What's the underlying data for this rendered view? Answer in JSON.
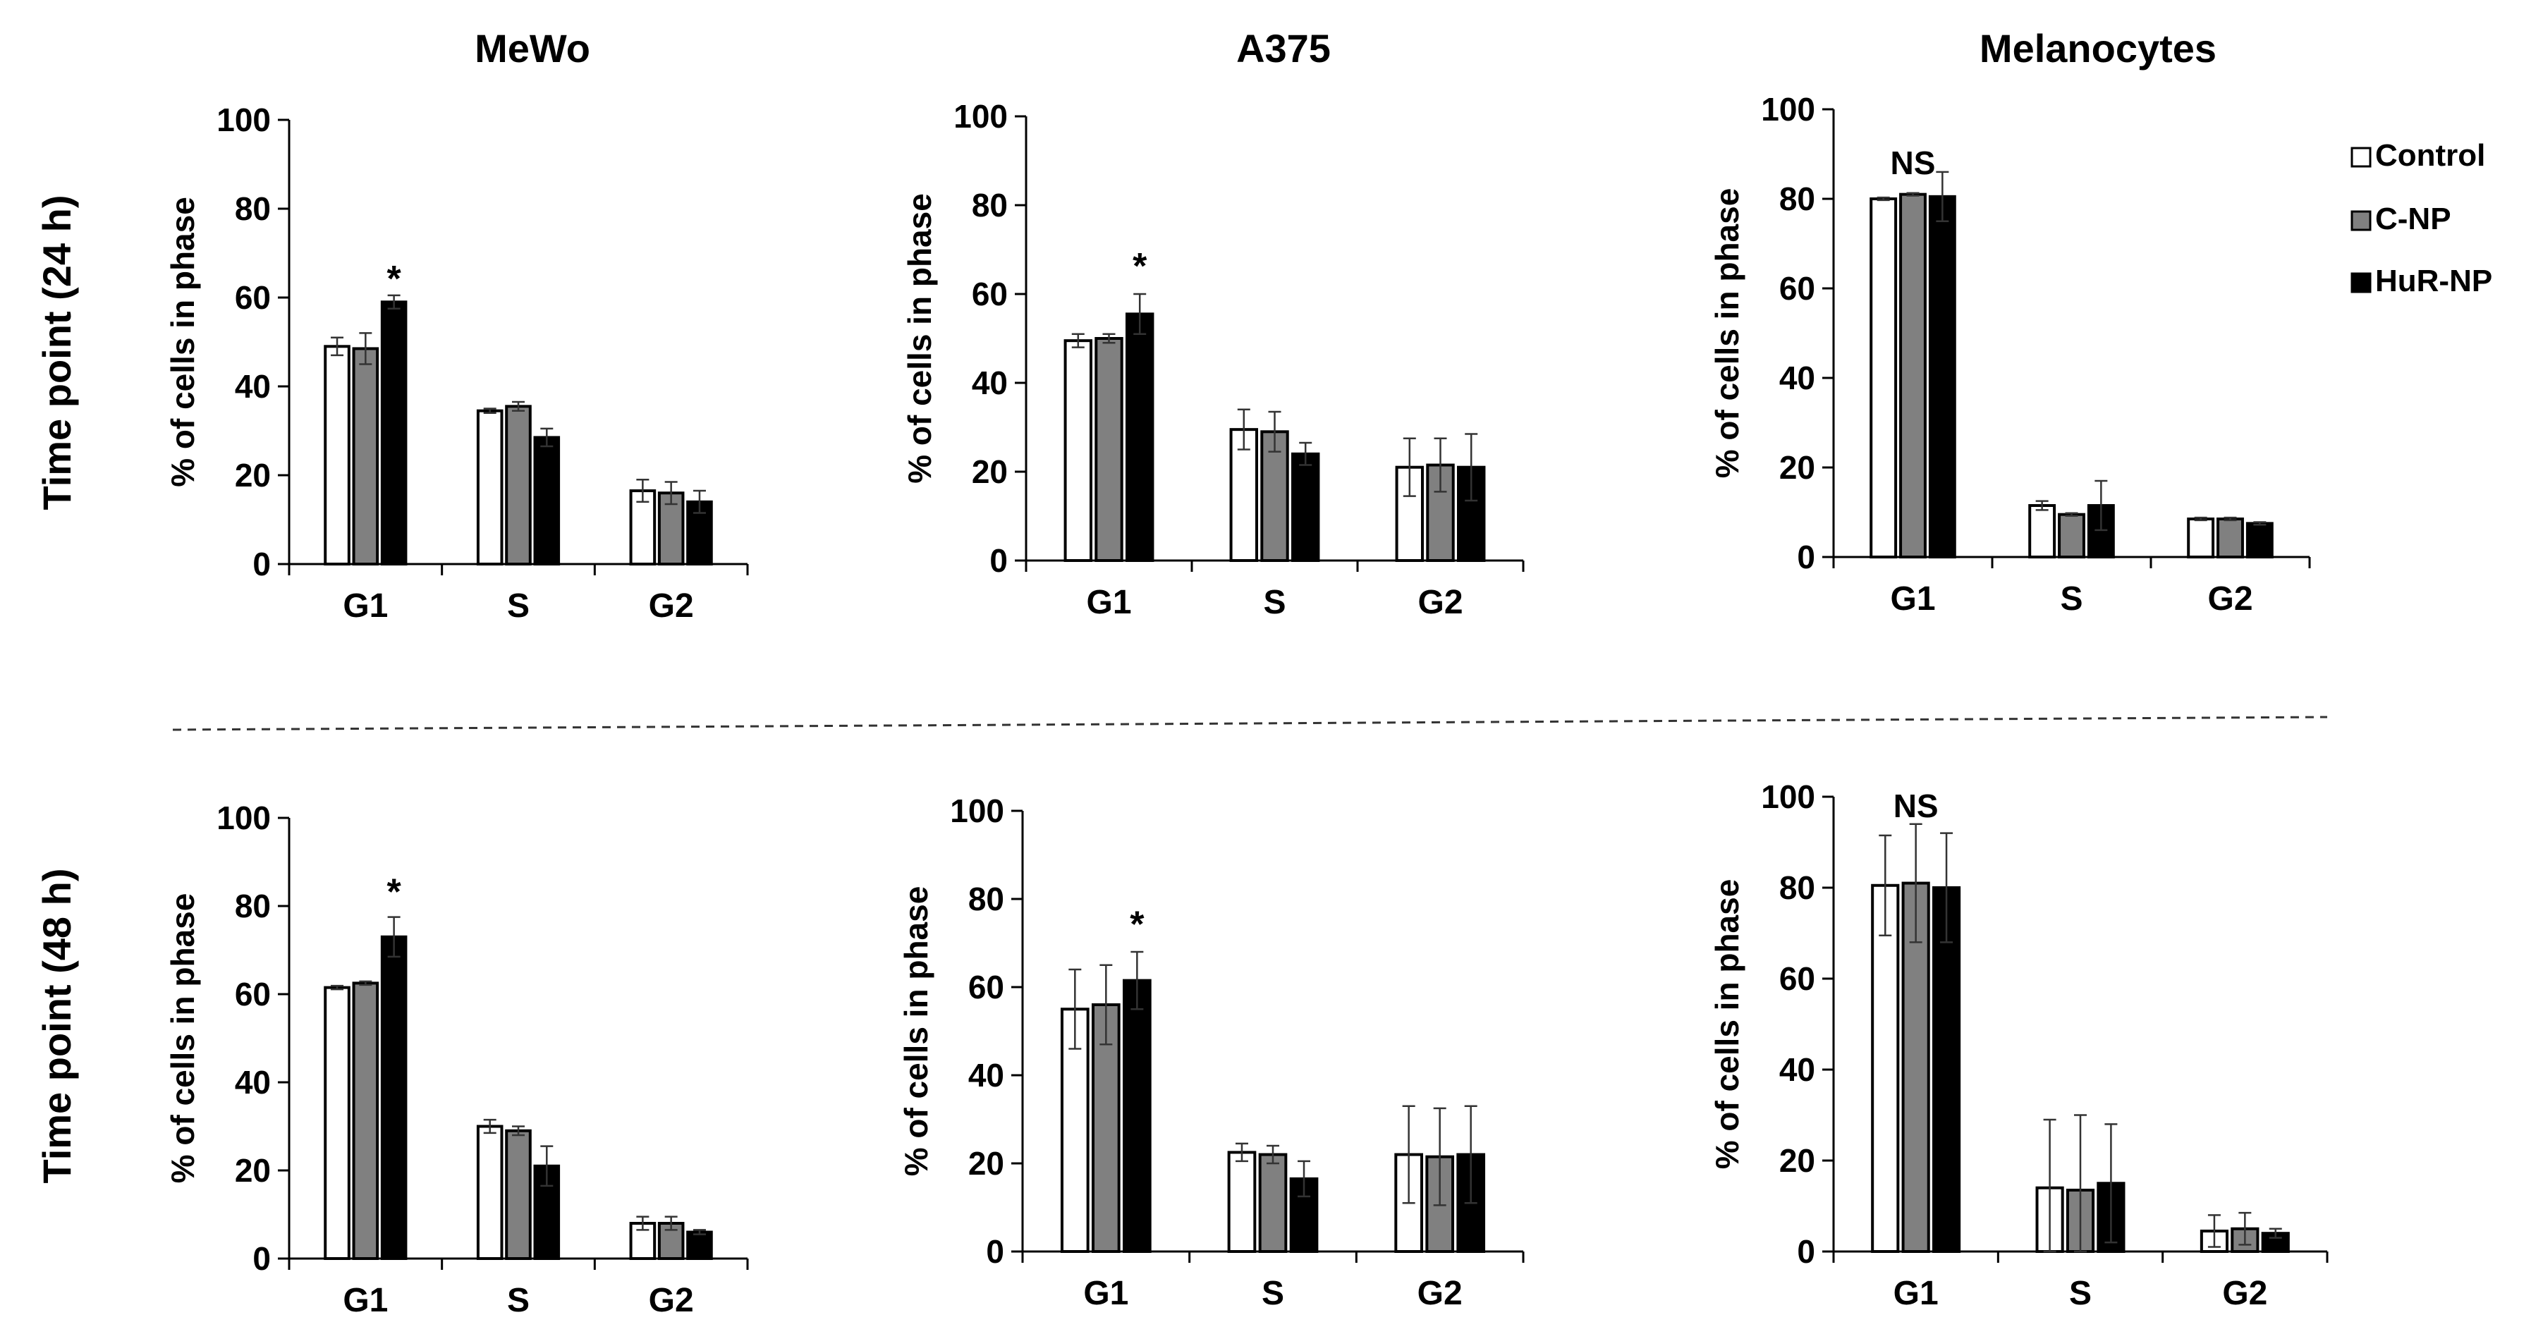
{
  "figure": {
    "row_labels": [
      "Time point (24 h)",
      "Time point (48 h)"
    ],
    "legend": [
      {
        "label": "Control",
        "color": "#ffffff"
      },
      {
        "label": "C-NP",
        "color": "#808080"
      },
      {
        "label": "HuR-NP",
        "color": "#000000"
      }
    ]
  },
  "chart_data": [
    {
      "type": "bar",
      "title": "MeWo",
      "row": 0,
      "col": 0,
      "ylabel": "% of cells in phase",
      "ylim": [
        0,
        100
      ],
      "yticks": [
        "0",
        "20",
        "40",
        "60",
        "80",
        "100"
      ],
      "categories": [
        "G1",
        "S",
        "G2"
      ],
      "series": [
        {
          "name": "Control",
          "values": [
            49,
            34.5,
            16.5
          ],
          "errors": [
            2,
            0.5,
            2.5
          ]
        },
        {
          "name": "C-NP",
          "values": [
            48.5,
            35.5,
            16
          ],
          "errors": [
            3.5,
            1,
            2.5
          ]
        },
        {
          "name": "HuR-NP",
          "values": [
            59,
            28.5,
            14
          ],
          "errors": [
            1.5,
            2,
            2.5
          ]
        }
      ],
      "annotation": {
        "text": "*",
        "category": 0,
        "value": 64
      }
    },
    {
      "type": "bar",
      "title": "A375",
      "row": 0,
      "col": 1,
      "ylabel": "% of cells in phase",
      "ylim": [
        0,
        100
      ],
      "yticks": [
        "0",
        "20",
        "40",
        "60",
        "80",
        "100"
      ],
      "categories": [
        "G1",
        "S",
        "G2"
      ],
      "series": [
        {
          "name": "Control",
          "values": [
            49.5,
            29.5,
            21
          ],
          "errors": [
            1.5,
            4.5,
            6.5
          ]
        },
        {
          "name": "C-NP",
          "values": [
            50,
            29,
            21.5
          ],
          "errors": [
            1,
            4.5,
            6
          ]
        },
        {
          "name": "HuR-NP",
          "values": [
            55.5,
            24,
            21
          ],
          "errors": [
            4.5,
            2.5,
            7.5
          ]
        }
      ],
      "annotation": {
        "text": "*",
        "category": 0,
        "value": 66
      }
    },
    {
      "type": "bar",
      "title": "Melanocytes",
      "row": 0,
      "col": 2,
      "ylabel": "% of cells in phase",
      "ylim": [
        0,
        100
      ],
      "yticks": [
        "0",
        "20",
        "40",
        "60",
        "80",
        "100"
      ],
      "categories": [
        "G1",
        "S",
        "G2"
      ],
      "series": [
        {
          "name": "Control",
          "values": [
            80,
            11.5,
            8.5
          ],
          "errors": [
            0.3,
            1,
            0.3
          ]
        },
        {
          "name": "C-NP",
          "values": [
            81,
            9.5,
            8.5
          ],
          "errors": [
            0.3,
            0.3,
            0.3
          ]
        },
        {
          "name": "HuR-NP",
          "values": [
            80.5,
            11.5,
            7.5
          ],
          "errors": [
            5.5,
            5.5,
            0.3
          ]
        }
      ],
      "annotation": {
        "text": "NS",
        "category": 0,
        "value": 88
      }
    },
    {
      "type": "bar",
      "title": "",
      "row": 1,
      "col": 0,
      "ylabel": "% of cells in phase",
      "ylim": [
        0,
        100
      ],
      "yticks": [
        "0",
        "20",
        "40",
        "60",
        "80",
        "100"
      ],
      "categories": [
        "G1",
        "S",
        "G2"
      ],
      "series": [
        {
          "name": "Control",
          "values": [
            61.5,
            30,
            8
          ],
          "errors": [
            0.4,
            1.5,
            1.5
          ]
        },
        {
          "name": "C-NP",
          "values": [
            62.5,
            29,
            8
          ],
          "errors": [
            0.4,
            1,
            1.5
          ]
        },
        {
          "name": "HuR-NP",
          "values": [
            73,
            21,
            6
          ],
          "errors": [
            4.5,
            4.5,
            0.5
          ]
        }
      ],
      "annotation": {
        "text": "*",
        "category": 0,
        "value": 83
      }
    },
    {
      "type": "bar",
      "title": "",
      "row": 1,
      "col": 1,
      "ylabel": "% of cells in phase",
      "ylim": [
        0,
        100
      ],
      "yticks": [
        "0",
        "20",
        "40",
        "60",
        "80",
        "100"
      ],
      "categories": [
        "G1",
        "S",
        "G2"
      ],
      "series": [
        {
          "name": "Control",
          "values": [
            55,
            22.5,
            22
          ],
          "errors": [
            9,
            2,
            11
          ]
        },
        {
          "name": "C-NP",
          "values": [
            56,
            22,
            21.5
          ],
          "errors": [
            9,
            2,
            11
          ]
        },
        {
          "name": "HuR-NP",
          "values": [
            61.5,
            16.5,
            22
          ],
          "errors": [
            6.5,
            4,
            11
          ]
        }
      ],
      "annotation": {
        "text": "*",
        "category": 0,
        "value": 74
      }
    },
    {
      "type": "bar",
      "title": "",
      "row": 1,
      "col": 2,
      "ylabel": "% of cells in phase",
      "ylim": [
        0,
        100
      ],
      "yticks": [
        "0",
        "20",
        "40",
        "60",
        "80",
        "100"
      ],
      "categories": [
        "G1",
        "S",
        "G2"
      ],
      "series": [
        {
          "name": "Control",
          "values": [
            80.5,
            14,
            4.5
          ],
          "errors": [
            11,
            15,
            3.5
          ]
        },
        {
          "name": "C-NP",
          "values": [
            81,
            13.5,
            5
          ],
          "errors": [
            13,
            16.5,
            3.5
          ]
        },
        {
          "name": "HuR-NP",
          "values": [
            80,
            15,
            4
          ],
          "errors": [
            12,
            13,
            1
          ]
        }
      ],
      "annotation": {
        "text": "NS",
        "category": 0,
        "value": 98
      }
    }
  ]
}
